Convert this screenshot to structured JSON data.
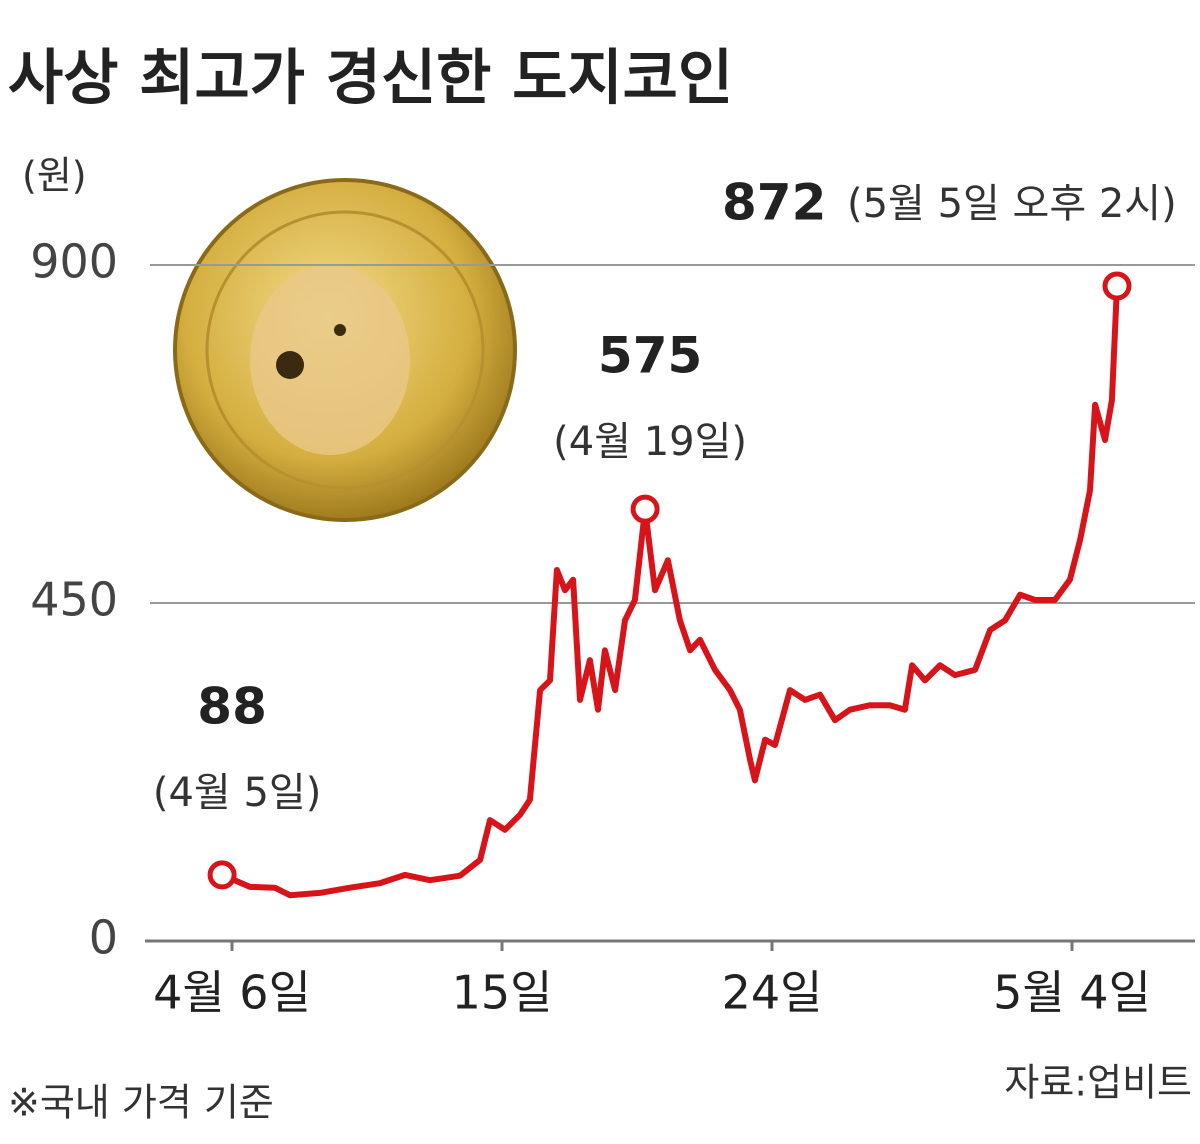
{
  "chart_data": {
    "type": "line",
    "title": "사상 최고가 경신한 도지코인",
    "y_unit": "(원)",
    "note": "※국내 가격 기준",
    "source": "자료:업비트",
    "color": "#d7141a",
    "x": [
      -0.33,
      0.6,
      1.43,
      1.93,
      2.93,
      3.93,
      4.93,
      5.77,
      6.6,
      7.6,
      8.27,
      8.6,
      9.1,
      9.6,
      9.93,
      10.27,
      10.6,
      10.83,
      11.1,
      11.37,
      11.6,
      11.93,
      12.2,
      12.43,
      12.77,
      13.1,
      13.43,
      13.77,
      14.1,
      14.53,
      14.93,
      15.27,
      15.6,
      16.1,
      16.6,
      16.93,
      17.27,
      17.43,
      17.77,
      18.1,
      18.6,
      19.1,
      19.6,
      20.1,
      20.6,
      21.27,
      21.93,
      22.43,
      22.67,
      23.1,
      23.6,
      24.1,
      24.77,
      25.27,
      25.77,
      26.27,
      26.77,
      27.43,
      27.93,
      28.27,
      28.6,
      28.77,
      29.1,
      29.33,
      29.5
    ],
    "values": [
      88,
      72,
      71,
      61,
      64,
      71,
      77,
      88,
      81,
      87,
      108,
      161,
      148,
      168,
      188,
      334,
      347,
      494,
      467,
      481,
      321,
      374,
      308,
      387,
      334,
      427,
      454,
      575,
      467,
      507,
      427,
      387,
      401,
      361,
      334,
      308,
      241,
      214,
      268,
      261,
      334,
      321,
      328,
      294,
      308,
      314,
      314,
      308,
      367,
      347,
      367,
      354,
      361,
      414,
      427,
      461,
      454,
      454,
      481,
      534,
      600,
      714,
      667,
      720,
      872
    ],
    "annotations": [
      {
        "x": -0.33,
        "value": 88,
        "label": "(4월 5일)"
      },
      {
        "x": 13.77,
        "value": 575,
        "label": "(4월 19일)"
      },
      {
        "x": 29.5,
        "value": 872,
        "label": "(5월 5일 오후 2시)"
      }
    ],
    "xlim": [
      -2.9,
      32.1
    ],
    "xticks": [
      {
        "value": 0,
        "label": "4월 6일"
      },
      {
        "value": 9,
        "label": "15일"
      },
      {
        "value": 18,
        "label": "24일"
      },
      {
        "value": 28,
        "label": "5월 4일"
      }
    ],
    "ylim": [
      0,
      900
    ],
    "yticks": [
      0,
      450,
      900
    ],
    "grid": true
  }
}
